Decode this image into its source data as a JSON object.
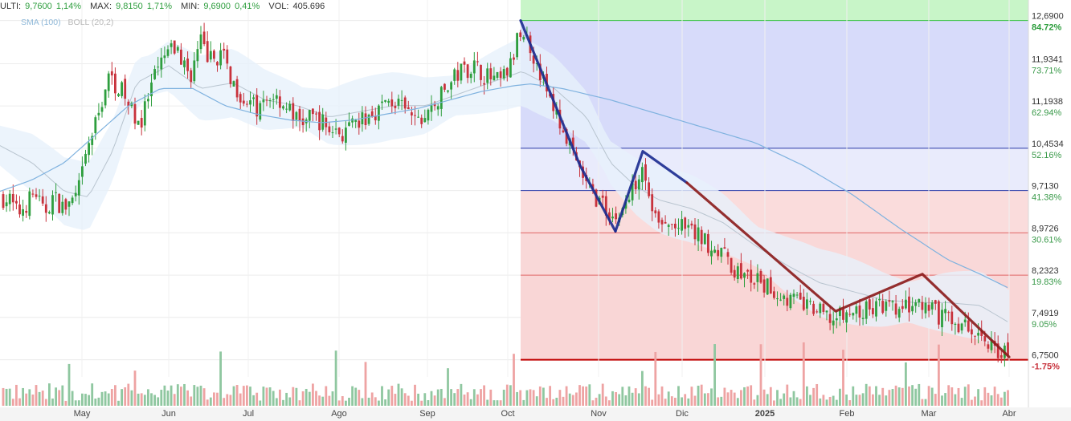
{
  "header": {
    "ulti_label": "ULTI:",
    "ulti_value": "9,7600",
    "ulti_pct": "1,14%",
    "max_label": "MAX:",
    "max_value": "9,8150",
    "max_pct": "1,71%",
    "min_label": "MIN:",
    "min_value": "9,6900",
    "min_pct": "0,41%",
    "vol_label": "VOL:",
    "vol_value": "405.696"
  },
  "legend": {
    "sma": "SMA (100)",
    "boll": "BOLL (20,2)"
  },
  "colors": {
    "up": "#2e9e3e",
    "down": "#c8323c",
    "sma": "#7fb2df",
    "boll_band": "#e7f1fb",
    "fib_top": "#c8f5c8",
    "fib_blue": "#d7dbfa",
    "fib_red": "#f9d6d6",
    "pattern_blue": "#1a2a8f",
    "pattern_red": "#8b1a1a"
  },
  "chart_data": {
    "type": "candlestick",
    "x_axis": {
      "labels": [
        "May",
        "Jun",
        "Jul",
        "Ago",
        "Sep",
        "Oct",
        "Nov",
        "Dic",
        "2025",
        "Feb",
        "Mar",
        "Abr"
      ]
    },
    "y_axis": {
      "range": [
        6.45,
        13.05
      ],
      "levels": [
        {
          "price": "12,6900",
          "pct": "84.72%",
          "value": 12.69
        },
        {
          "price": "11,9341",
          "pct": "73.71%",
          "value": 11.9341
        },
        {
          "price": "11,1938",
          "pct": "62.94%",
          "value": 11.1938
        },
        {
          "price": "10,4534",
          "pct": "52.16%",
          "value": 10.4534
        },
        {
          "price": "9,7130",
          "pct": "41.38%",
          "value": 9.713
        },
        {
          "price": "8,9726",
          "pct": "30.61%",
          "value": 8.9726
        },
        {
          "price": "8,2323",
          "pct": "19.83%",
          "value": 8.2323
        },
        {
          "price": "7,4919",
          "pct": "9.05%",
          "value": 7.4919
        },
        {
          "price": "6,7500",
          "pct": "-1.75%",
          "value": 6.75
        }
      ]
    },
    "price_anchors": [
      [
        0,
        9.6
      ],
      [
        12,
        9.55
      ],
      [
        22,
        9.3
      ],
      [
        34,
        9.5
      ],
      [
        44,
        9.7
      ],
      [
        54,
        9.3
      ],
      [
        66,
        9.6
      ],
      [
        80,
        9.4
      ],
      [
        96,
        9.6
      ],
      [
        110,
        10.5
      ],
      [
        122,
        11.0
      ],
      [
        134,
        11.7
      ],
      [
        150,
        11.5
      ],
      [
        164,
        11.1
      ],
      [
        176,
        10.9
      ],
      [
        190,
        11.6
      ],
      [
        206,
        12.1
      ],
      [
        220,
        12.2
      ],
      [
        236,
        11.7
      ],
      [
        250,
        12.3
      ],
      [
        262,
        12.0
      ],
      [
        276,
        12.1
      ],
      [
        290,
        11.6
      ],
      [
        306,
        11.3
      ],
      [
        322,
        11.1
      ],
      [
        340,
        11.4
      ],
      [
        356,
        11.2
      ],
      [
        372,
        10.9
      ],
      [
        392,
        11.0
      ],
      [
        410,
        10.8
      ],
      [
        428,
        10.7
      ],
      [
        448,
        10.9
      ],
      [
        466,
        11.1
      ],
      [
        486,
        11.3
      ],
      [
        504,
        11.1
      ],
      [
        522,
        10.9
      ],
      [
        540,
        11.2
      ],
      [
        556,
        11.5
      ],
      [
        572,
        11.8
      ],
      [
        590,
        11.9
      ],
      [
        606,
        11.7
      ],
      [
        622,
        11.6
      ],
      [
        636,
        11.9
      ],
      [
        648,
        12.55
      ],
      [
        660,
        12.25
      ],
      [
        672,
        11.8
      ],
      [
        684,
        11.3
      ],
      [
        700,
        10.8
      ],
      [
        716,
        10.2
      ],
      [
        732,
        9.75
      ],
      [
        750,
        9.45
      ],
      [
        766,
        9.2
      ],
      [
        782,
        9.55
      ],
      [
        800,
        10.25
      ],
      [
        810,
        9.45
      ],
      [
        822,
        9.05
      ],
      [
        840,
        9.1
      ],
      [
        858,
        9.0
      ],
      [
        876,
        8.85
      ],
      [
        896,
        8.65
      ],
      [
        916,
        8.3
      ],
      [
        936,
        8.15
      ],
      [
        956,
        8.0
      ],
      [
        976,
        7.85
      ],
      [
        996,
        7.75
      ],
      [
        1016,
        7.6
      ],
      [
        1036,
        7.45
      ],
      [
        1056,
        7.55
      ],
      [
        1076,
        7.6
      ],
      [
        1096,
        7.7
      ],
      [
        1116,
        7.6
      ],
      [
        1136,
        7.7
      ],
      [
        1156,
        7.6
      ],
      [
        1176,
        7.5
      ],
      [
        1196,
        7.35
      ],
      [
        1216,
        7.2
      ],
      [
        1236,
        7.0
      ],
      [
        1256,
        6.8
      ]
    ],
    "sma_path": [
      [
        0,
        9.7
      ],
      [
        40,
        9.9
      ],
      [
        80,
        10.2
      ],
      [
        120,
        10.7
      ],
      [
        160,
        11.2
      ],
      [
        200,
        11.5
      ],
      [
        240,
        11.5
      ],
      [
        280,
        11.2
      ],
      [
        320,
        11.05
      ],
      [
        360,
        10.95
      ],
      [
        400,
        10.9
      ],
      [
        440,
        10.95
      ],
      [
        480,
        11.05
      ],
      [
        520,
        11.15
      ],
      [
        560,
        11.3
      ],
      [
        600,
        11.45
      ],
      [
        640,
        11.55
      ],
      [
        660,
        11.58
      ],
      [
        700,
        11.5
      ],
      [
        760,
        11.3
      ],
      [
        820,
        11.05
      ],
      [
        880,
        10.8
      ],
      [
        940,
        10.55
      ],
      [
        1000,
        10.15
      ],
      [
        1060,
        9.65
      ],
      [
        1120,
        9.05
      ],
      [
        1180,
        8.5
      ],
      [
        1220,
        8.25
      ],
      [
        1256,
        8.0
      ]
    ],
    "boll_mid": [
      [
        0,
        10.5
      ],
      [
        40,
        10.2
      ],
      [
        80,
        9.7
      ],
      [
        110,
        9.6
      ],
      [
        140,
        10.4
      ],
      [
        170,
        11.6
      ],
      [
        210,
        11.9
      ],
      [
        250,
        11.5
      ],
      [
        290,
        11.6
      ],
      [
        330,
        11.3
      ],
      [
        370,
        11.2
      ],
      [
        410,
        11.0
      ],
      [
        450,
        11.1
      ],
      [
        490,
        11.2
      ],
      [
        530,
        11.2
      ],
      [
        570,
        11.4
      ],
      [
        610,
        11.6
      ],
      [
        650,
        11.8
      ],
      [
        690,
        11.5
      ],
      [
        730,
        11.0
      ],
      [
        760,
        10.2
      ],
      [
        790,
        9.8
      ],
      [
        820,
        9.55
      ],
      [
        860,
        9.4
      ],
      [
        900,
        9.15
      ],
      [
        940,
        8.75
      ],
      [
        980,
        8.4
      ],
      [
        1020,
        8.1
      ],
      [
        1060,
        7.95
      ],
      [
        1100,
        7.8
      ],
      [
        1140,
        7.75
      ],
      [
        1180,
        7.75
      ],
      [
        1220,
        7.7
      ],
      [
        1256,
        7.4
      ]
    ],
    "fib_zones": [
      {
        "from": 12.69,
        "to": 13.05,
        "color_key": "fib_top"
      },
      {
        "from": 10.4534,
        "to": 12.69,
        "color_key": "fib_blue"
      },
      {
        "from": 9.713,
        "to": 10.4534,
        "color_key": "fib_blue"
      },
      {
        "from": 8.9726,
        "to": 9.713,
        "color_key": "fib_red"
      },
      {
        "from": 8.2323,
        "to": 8.9726,
        "color_key": "fib_red"
      },
      {
        "from": 6.75,
        "to": 8.2323,
        "color_key": "fib_red"
      }
    ],
    "pattern_lines": [
      {
        "color_key": "pattern_blue",
        "points": [
          [
            648,
            12.69
          ],
          [
            722,
            10.15
          ],
          [
            766,
            9.0
          ]
        ]
      },
      {
        "color_key": "pattern_blue",
        "points": [
          [
            766,
            9.0
          ],
          [
            800,
            10.4
          ],
          [
            855,
            9.85
          ]
        ]
      },
      {
        "color_key": "pattern_red",
        "points": [
          [
            855,
            9.85
          ],
          [
            1040,
            7.6
          ],
          [
            1148,
            8.25
          ],
          [
            1256,
            6.8
          ]
        ]
      }
    ]
  }
}
